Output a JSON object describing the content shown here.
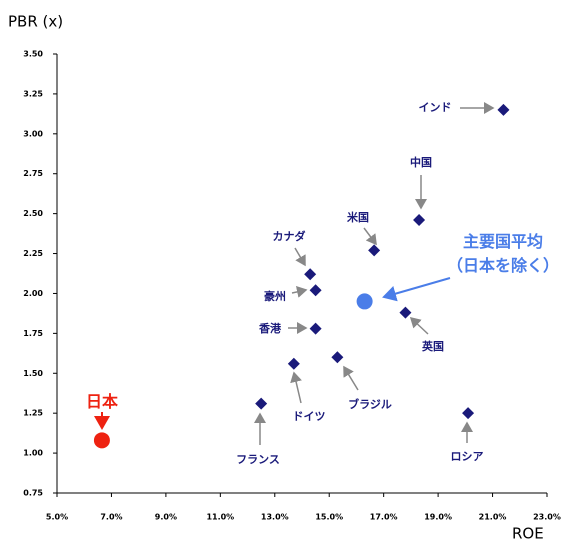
{
  "chart_data": {
    "type": "scatter",
    "y_axis_title": "PBR (x)",
    "x_axis_title": "ROE",
    "xlim": [
      5,
      23
    ],
    "xticks": [
      {
        "value": 5,
        "label": "5.0%"
      },
      {
        "value": 7,
        "label": "7.0%"
      },
      {
        "value": 9,
        "label": "9.0%"
      },
      {
        "value": 11,
        "label": "11.0%"
      },
      {
        "value": 13,
        "label": "13.0%"
      },
      {
        "value": 15,
        "label": "15.0%"
      },
      {
        "value": 17,
        "label": "17.0%"
      },
      {
        "value": 19,
        "label": "19.0%"
      },
      {
        "value": 21,
        "label": "21.0%"
      },
      {
        "value": 23,
        "label": "23.0%"
      }
    ],
    "ylim": [
      0.75,
      3.5
    ],
    "yticks": [
      0.75,
      {
        "value": 1,
        "label": "1.00"
      },
      1.25,
      {
        "value": 1.5,
        "label": "1.50"
      },
      1.75,
      {
        "value": 2,
        "label": "2.00"
      },
      2.25,
      {
        "value": 2.5,
        "label": "2.50"
      },
      2.75,
      {
        "value": 3,
        "label": "3.00"
      },
      3.25,
      {
        "value": 3.5,
        "label": "3.50"
      }
    ],
    "points": [
      {
        "label": "インド",
        "x": 21.4,
        "y": 3.15,
        "shape": "diamond",
        "color": "#1a1a7a"
      },
      {
        "label": "中国",
        "x": 18.3,
        "y": 2.46,
        "shape": "diamond",
        "color": "#1a1a7a"
      },
      {
        "label": "米国",
        "x": 16.65,
        "y": 2.27,
        "shape": "diamond",
        "color": "#1a1a7a"
      },
      {
        "label": "カナダ",
        "x": 14.3,
        "y": 2.12,
        "shape": "diamond",
        "color": "#1a1a7a"
      },
      {
        "label": "豪州",
        "x": 14.5,
        "y": 2.02,
        "shape": "diamond",
        "color": "#1a1a7a"
      },
      {
        "label": "香港",
        "x": 14.5,
        "y": 1.78,
        "shape": "diamond",
        "color": "#1a1a7a"
      },
      {
        "label": "英国",
        "x": 17.8,
        "y": 1.88,
        "shape": "diamond",
        "color": "#1a1a7a"
      },
      {
        "label": "ブラジル",
        "x": 15.3,
        "y": 1.6,
        "shape": "diamond",
        "color": "#1a1a7a"
      },
      {
        "label": "ドイツ",
        "x": 13.7,
        "y": 1.56,
        "shape": "diamond",
        "color": "#1a1a7a"
      },
      {
        "label": "フランス",
        "x": 12.5,
        "y": 1.31,
        "shape": "diamond",
        "color": "#1a1a7a"
      },
      {
        "label": "ロシア",
        "x": 20.1,
        "y": 1.25,
        "shape": "diamond",
        "color": "#1a1a7a"
      },
      {
        "label": "主要国平均\n（日本を除く）",
        "x": 16.3,
        "y": 1.95,
        "shape": "circle",
        "color": "#4a7de8"
      },
      {
        "label": "日本",
        "x": 6.65,
        "y": 1.08,
        "shape": "circle",
        "color": "#ee2211"
      }
    ]
  }
}
